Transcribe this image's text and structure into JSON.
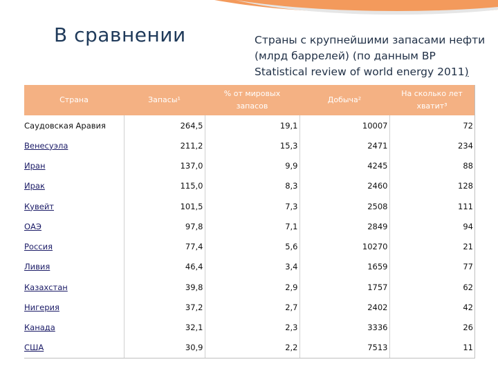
{
  "title": "В сравнении",
  "subtitle_line1": "Страны с крупнейшими запасами нефти",
  "subtitle_line2": "(млрд баррелей) (по данным BP",
  "subtitle_line3": "Statistical review of world energy 2011",
  "subtitle_link": ")",
  "colors": {
    "header_bg": "#f4b183",
    "corner_accent": "#f39a5c"
  },
  "columns": [
    "Страна",
    "Запасы¹",
    "% от мировых запасов",
    "Добыча²",
    "На сколько лет хватит³"
  ],
  "rows": [
    [
      "Саудовская Аравия",
      "264,5",
      "19,1",
      "10007",
      "72"
    ],
    [
      "Венесуэла",
      "211,2",
      "15,3",
      "2471",
      "234"
    ],
    [
      "Иран",
      "137,0",
      "9,9",
      "4245",
      "88"
    ],
    [
      "Ирак",
      "115,0",
      "8,3",
      "2460",
      "128"
    ],
    [
      "Кувейт",
      "101,5",
      "7,3",
      "2508",
      "111"
    ],
    [
      "ОАЭ",
      "97,8",
      "7,1",
      "2849",
      "94"
    ],
    [
      "Россия",
      "77,4",
      "5,6",
      "10270",
      "21"
    ],
    [
      "Ливия",
      "46,4",
      "3,4",
      "1659",
      "77"
    ],
    [
      "Казахстан",
      "39,8",
      "2,9",
      "1757",
      "62"
    ],
    [
      "Нигерия",
      "37,2",
      "2,7",
      "2402",
      "42"
    ],
    [
      "Канада",
      "32,1",
      "2,3",
      "3336",
      "26"
    ],
    [
      "США",
      "30,9",
      "2,2",
      "7513",
      "11"
    ]
  ]
}
